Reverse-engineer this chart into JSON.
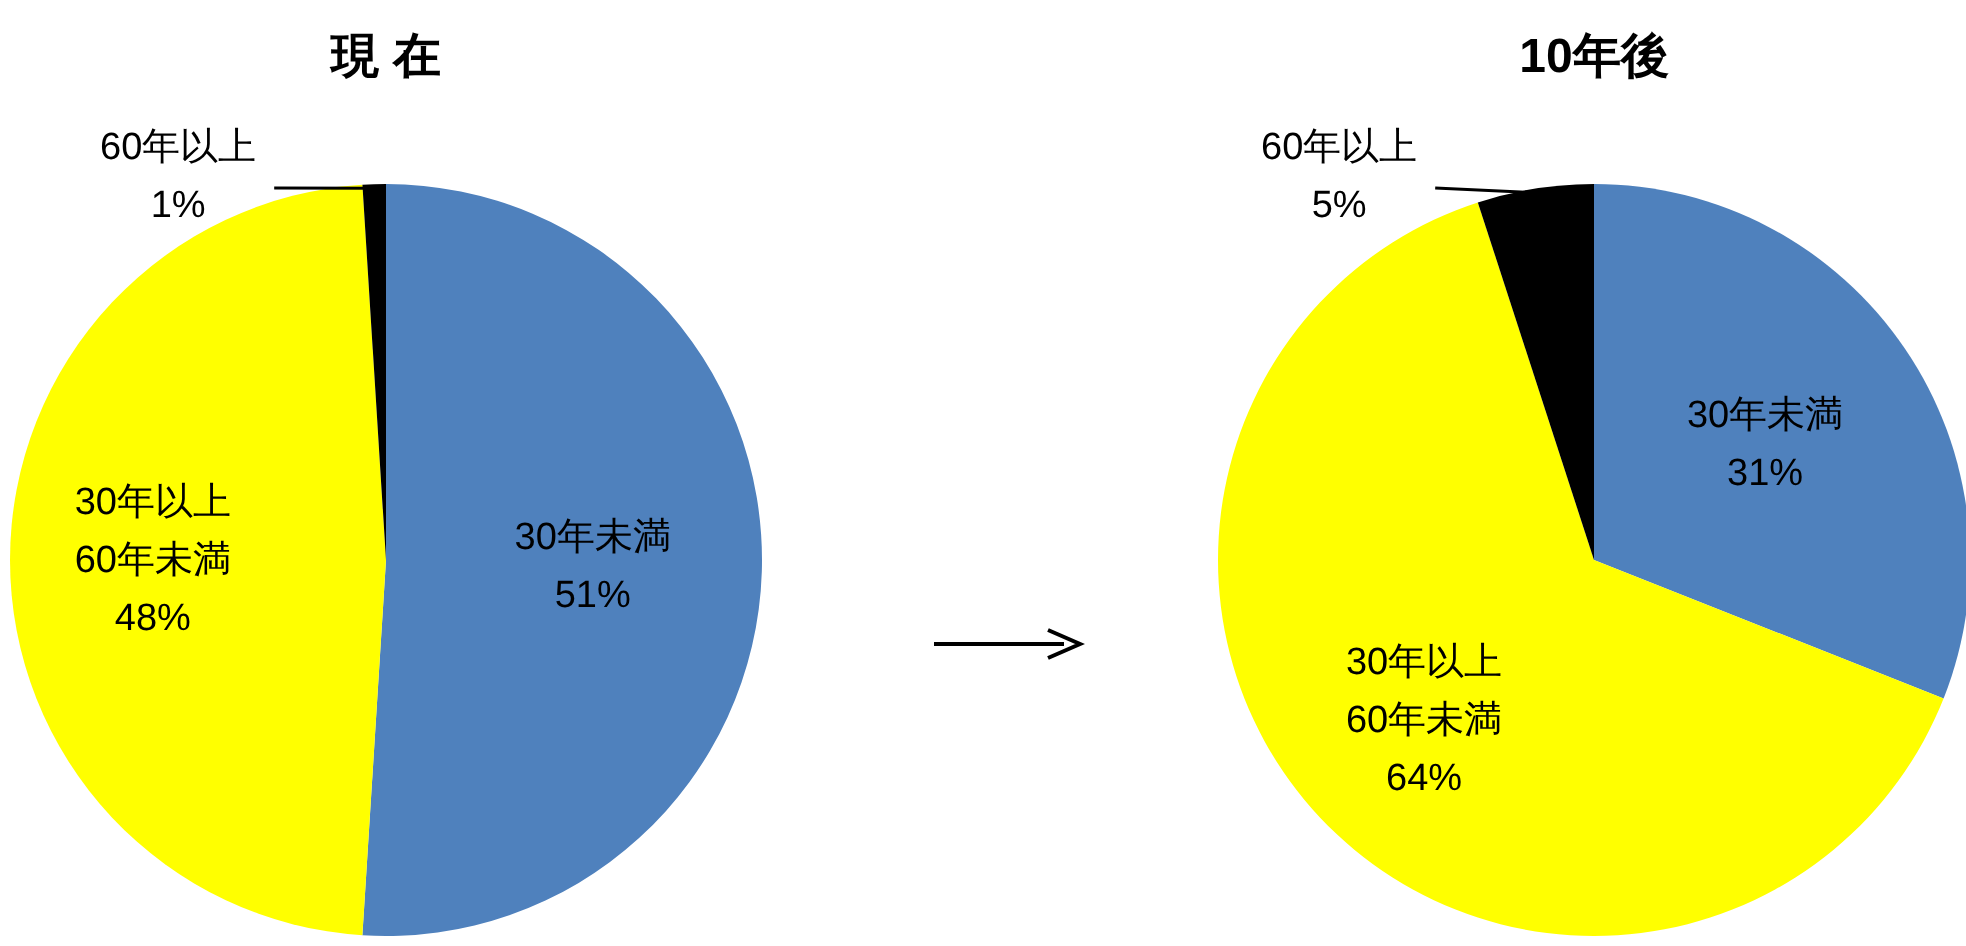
{
  "chart_data": [
    {
      "type": "pie",
      "title": "現 在",
      "categories": [
        "30年未満",
        "30年以上\n60年未満",
        "60年以上"
      ],
      "values": [
        51,
        48,
        1
      ],
      "value_labels": [
        "51%",
        "48%",
        "1%"
      ],
      "colors": [
        "#4f81bd",
        "#ffff00",
        "#000000"
      ]
    },
    {
      "type": "pie",
      "title": "10年後",
      "categories": [
        "30年未満",
        "30年以上\n60年未満",
        "60年以上"
      ],
      "values": [
        31,
        64,
        5
      ],
      "value_labels": [
        "31%",
        "64%",
        "5%"
      ],
      "colors": [
        "#4f81bd",
        "#ffff00",
        "#000000"
      ]
    }
  ]
}
